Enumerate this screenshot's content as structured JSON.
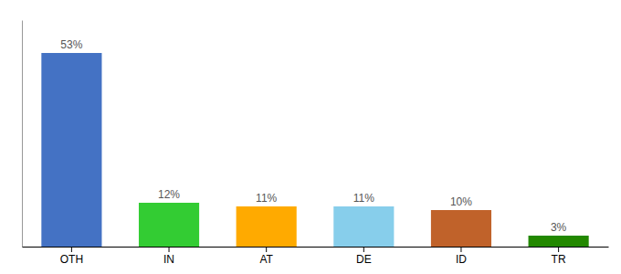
{
  "chart_data": {
    "type": "bar",
    "categories": [
      "OTH",
      "IN",
      "AT",
      "DE",
      "ID",
      "TR"
    ],
    "values": [
      53,
      12,
      11,
      11,
      10,
      3
    ],
    "value_labels": [
      "53%",
      "12%",
      "11%",
      "11%",
      "10%",
      "3%"
    ],
    "colors": [
      "#4472c4",
      "#33cc33",
      "#ffaa00",
      "#87ceeb",
      "#c0622a",
      "#228800"
    ],
    "ylim": [
      0,
      62
    ],
    "data_labels": true,
    "tick_labels": "x",
    "grid": false
  }
}
